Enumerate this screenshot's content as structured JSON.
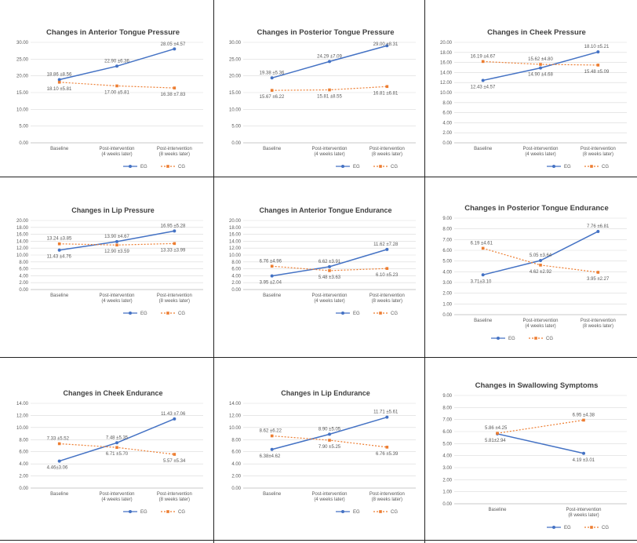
{
  "colors": {
    "eg": "#4472C4",
    "cg": "#ED7D31",
    "grid": "#d9d9d9",
    "text": "#595959",
    "title": "#404040"
  },
  "chart_data": [
    {
      "type": "line",
      "title": "Changes in Anterior Tongue Pressure",
      "categories": [
        "Baseline",
        "Post-intervention\n(4 weeks later)",
        "Post-intervention\n(8 weeks later)"
      ],
      "ylim": [
        0,
        30
      ],
      "ystep": 5,
      "decimals": 2,
      "legend": "bottom-right",
      "series": [
        {
          "name": "EG",
          "values": [
            18.86,
            22.9,
            28.05
          ],
          "labels": [
            "18.86 ±8.56",
            "22.90 ±6.36",
            "28.05 ±4.57"
          ]
        },
        {
          "name": "CG",
          "values": [
            18.1,
            17.0,
            16.38
          ],
          "labels": [
            "18.10 ±5.81",
            "17.00 ±5.81",
            "16.38 ±7.83"
          ]
        }
      ]
    },
    {
      "type": "line",
      "title": "Changes in Posterior  Tongue Pressure",
      "categories": [
        "Baseline",
        "Post-intervention\n(4 weeks later)",
        "Post-intervention\n(8 weeks later)"
      ],
      "ylim": [
        0,
        30
      ],
      "ystep": 5,
      "decimals": 2,
      "legend": "bottom-right",
      "series": [
        {
          "name": "EG",
          "values": [
            19.38,
            24.29,
            29.0
          ],
          "labels": [
            "19.38 ±5.36",
            "24.29 ±7.09",
            "29.00 ±8.31"
          ]
        },
        {
          "name": "CG",
          "values": [
            15.67,
            15.81,
            16.81
          ],
          "labels": [
            "15.67 ±6.22",
            "15.81 ±8.55",
            "16.81 ±6.81"
          ]
        }
      ]
    },
    {
      "type": "line",
      "title": "Changes in Cheek Pressure",
      "categories": [
        "Baseline",
        "Post-intervention\n(4 weeks later)",
        "Post-intervention\n(8 weeks later)"
      ],
      "ylim": [
        0,
        20
      ],
      "ystep": 2,
      "decimals": 2,
      "legend": "bottom-right",
      "series": [
        {
          "name": "EG",
          "values": [
            12.43,
            14.9,
            18.1
          ],
          "labels": [
            "12.43 ±4.57",
            "14.90 ±4.68",
            "18.10 ±5.21"
          ]
        },
        {
          "name": "CG",
          "values": [
            16.19,
            15.62,
            15.48
          ],
          "labels": [
            "16.19 ±4.67",
            "15.62 ±4.80",
            "15.48 ±5.09"
          ]
        }
      ]
    },
    {
      "type": "line",
      "title": "Changes in Lip Pressure",
      "categories": [
        "Baseline",
        "Post-intervention\n(4 weeks later)",
        "Post-intervention\n(8 weeks later)"
      ],
      "ylim": [
        0,
        20
      ],
      "ystep": 2,
      "decimals": 2,
      "legend": "bottom-right",
      "series": [
        {
          "name": "EG",
          "values": [
            11.43,
            13.9,
            16.95
          ],
          "labels": [
            "11.43 ±4.76",
            "13.90 ±4.67",
            "16.95 ±5.28"
          ]
        },
        {
          "name": "CG",
          "values": [
            13.24,
            12.9,
            13.33
          ],
          "labels": [
            "13.24 ±3.85",
            "12.90 ±3.59",
            "13.33 ±3.99"
          ]
        }
      ]
    },
    {
      "type": "line",
      "title": "Changes in Anterior Tongue Endurance",
      "categories": [
        "Baseline",
        "Post-intervention\n(4 weeks later)",
        "Post-intervention\n(8 weeks later)"
      ],
      "ylim": [
        0,
        20
      ],
      "ystep": 2,
      "decimals": 2,
      "legend": "bottom-right",
      "series": [
        {
          "name": "EG",
          "values": [
            3.95,
            6.62,
            11.62
          ],
          "labels": [
            "3.95 ±2.04",
            "6.62 ±3.91",
            "11.62 ±7.28"
          ]
        },
        {
          "name": "CG",
          "values": [
            6.76,
            5.48,
            6.1
          ],
          "labels": [
            "6.76 ±4.96",
            "5.48 ±3.63",
            "6.10 ±5.23"
          ]
        }
      ]
    },
    {
      "type": "line",
      "title": "Changes in Posterior Tongue Endurance",
      "categories": [
        "Baseline",
        "Post-intervention\n(4 weeks later)",
        "Post-intervention\n(8 weeks later)"
      ],
      "ylim": [
        0,
        9
      ],
      "ystep": 1,
      "decimals": 2,
      "legend": "bottom-center",
      "series": [
        {
          "name": "EG",
          "values": [
            3.71,
            5.05,
            7.76
          ],
          "labels": [
            "3.71±3.10",
            "5.05 ±3.64",
            "7.76 ±6.81"
          ]
        },
        {
          "name": "CG",
          "values": [
            6.19,
            4.62,
            3.95
          ],
          "labels": [
            "6.19 ±4.61",
            "4.62 ±2.92",
            "3.95 ±2.27"
          ]
        }
      ]
    },
    {
      "type": "line",
      "title": "Changes in Cheek Endurance",
      "categories": [
        "Baseline",
        "Post-intervention\n(4 weeks later)",
        "Post-intervention\n(8 weeks later)"
      ],
      "ylim": [
        0,
        14
      ],
      "ystep": 2,
      "decimals": 2,
      "legend": "bottom-right",
      "series": [
        {
          "name": "EG",
          "values": [
            4.46,
            7.48,
            11.43
          ],
          "labels": [
            "4.46±3.06",
            "7.48 ±5.35",
            "11.43 ±7.06"
          ]
        },
        {
          "name": "CG",
          "values": [
            7.33,
            6.71,
            5.57
          ],
          "labels": [
            "7.33 ±5.52",
            "6.71 ±5.70",
            "5.57 ±5.34"
          ]
        }
      ]
    },
    {
      "type": "line",
      "title": "Changes in Lip Endurance",
      "categories": [
        "Baseline",
        "Post-intervention\n(4 weeks later)",
        "Post-intervention\n(8 weeks later)"
      ],
      "ylim": [
        0,
        14
      ],
      "ystep": 2,
      "decimals": 2,
      "legend": "bottom-right",
      "series": [
        {
          "name": "EG",
          "values": [
            6.38,
            8.9,
            11.71
          ],
          "labels": [
            "6.38±4.62",
            "8.90 ±5.05",
            "11.71 ±5.61"
          ]
        },
        {
          "name": "CG",
          "values": [
            8.62,
            7.9,
            6.76
          ],
          "labels": [
            "8.62 ±6.22",
            "7.90 ±5.25",
            "6.76 ±5.39"
          ]
        }
      ]
    },
    {
      "type": "line",
      "title": "Changes in Swallowing Symptoms",
      "categories": [
        "Baseline",
        "Post-intervention\n(8 weeks later)"
      ],
      "ylim": [
        0,
        9
      ],
      "ystep": 1,
      "decimals": 2,
      "legend": "bottom-right",
      "series": [
        {
          "name": "EG",
          "values": [
            5.81,
            4.19
          ],
          "labels": [
            "5.81±2.94",
            "4.19 ±3.01"
          ]
        },
        {
          "name": "CG",
          "values": [
            5.86,
            6.95
          ],
          "labels": [
            "5.86 ±4.25",
            "6.95 ±4.38"
          ]
        }
      ]
    }
  ]
}
